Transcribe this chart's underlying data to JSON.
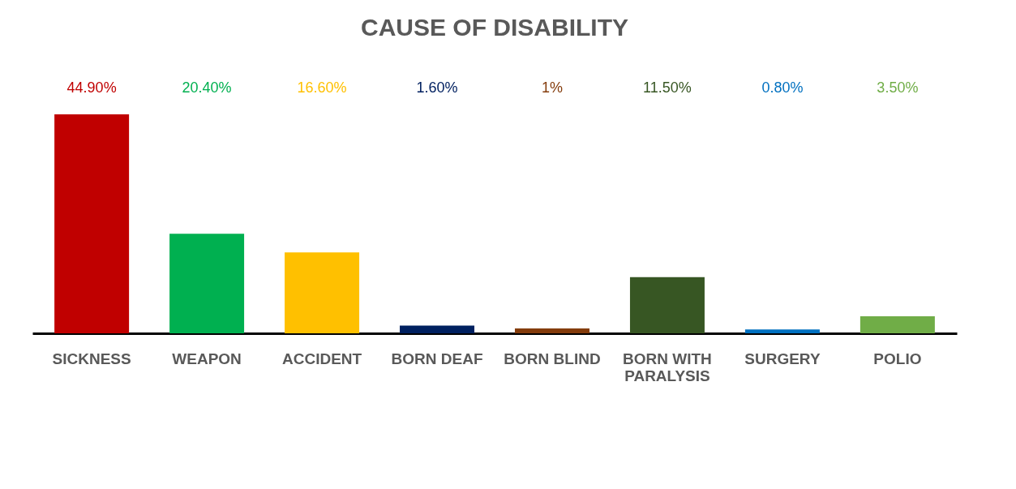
{
  "chart_data": {
    "type": "bar",
    "title": "CAUSE OF DISABILITY",
    "categories": [
      "SICKNESS",
      "WEAPON",
      "ACCIDENT",
      "BORN DEAF",
      "BORN BLIND",
      "BORN WITH PARALYSIS",
      "SURGERY",
      "POLIO"
    ],
    "values": [
      44.9,
      20.4,
      16.6,
      1.6,
      1,
      11.5,
      0.8,
      3.5
    ],
    "value_labels": [
      "44.90%",
      "20.40%",
      "16.60%",
      "1.60%",
      "1%",
      "11.50%",
      "0.80%",
      "3.50%"
    ],
    "colors": [
      "#c00000",
      "#00b050",
      "#ffc000",
      "#002060",
      "#843c0c",
      "#375623",
      "#0070c0",
      "#70ad47"
    ],
    "tick_labels": "x",
    "grid": false
  }
}
